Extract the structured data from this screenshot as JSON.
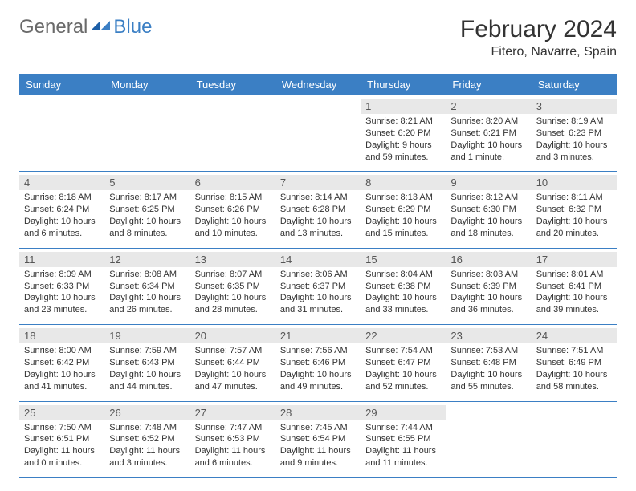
{
  "logo": {
    "text1": "General",
    "text2": "Blue"
  },
  "title": "February 2024",
  "location": "Fitero, Navarre, Spain",
  "colors": {
    "header_bg": "#3b7fc4",
    "daynum_band": "#e8e8e8",
    "week_border": "#3b7fc4",
    "text": "#333333",
    "logo_gray": "#6a6a6a",
    "logo_blue": "#3b7fc4"
  },
  "weekdays": [
    "Sunday",
    "Monday",
    "Tuesday",
    "Wednesday",
    "Thursday",
    "Friday",
    "Saturday"
  ],
  "weeks": [
    [
      null,
      null,
      null,
      null,
      {
        "n": "1",
        "sr": "Sunrise: 8:21 AM",
        "ss": "Sunset: 6:20 PM",
        "dl1": "Daylight: 9 hours",
        "dl2": "and 59 minutes."
      },
      {
        "n": "2",
        "sr": "Sunrise: 8:20 AM",
        "ss": "Sunset: 6:21 PM",
        "dl1": "Daylight: 10 hours",
        "dl2": "and 1 minute."
      },
      {
        "n": "3",
        "sr": "Sunrise: 8:19 AM",
        "ss": "Sunset: 6:23 PM",
        "dl1": "Daylight: 10 hours",
        "dl2": "and 3 minutes."
      }
    ],
    [
      {
        "n": "4",
        "sr": "Sunrise: 8:18 AM",
        "ss": "Sunset: 6:24 PM",
        "dl1": "Daylight: 10 hours",
        "dl2": "and 6 minutes."
      },
      {
        "n": "5",
        "sr": "Sunrise: 8:17 AM",
        "ss": "Sunset: 6:25 PM",
        "dl1": "Daylight: 10 hours",
        "dl2": "and 8 minutes."
      },
      {
        "n": "6",
        "sr": "Sunrise: 8:15 AM",
        "ss": "Sunset: 6:26 PM",
        "dl1": "Daylight: 10 hours",
        "dl2": "and 10 minutes."
      },
      {
        "n": "7",
        "sr": "Sunrise: 8:14 AM",
        "ss": "Sunset: 6:28 PM",
        "dl1": "Daylight: 10 hours",
        "dl2": "and 13 minutes."
      },
      {
        "n": "8",
        "sr": "Sunrise: 8:13 AM",
        "ss": "Sunset: 6:29 PM",
        "dl1": "Daylight: 10 hours",
        "dl2": "and 15 minutes."
      },
      {
        "n": "9",
        "sr": "Sunrise: 8:12 AM",
        "ss": "Sunset: 6:30 PM",
        "dl1": "Daylight: 10 hours",
        "dl2": "and 18 minutes."
      },
      {
        "n": "10",
        "sr": "Sunrise: 8:11 AM",
        "ss": "Sunset: 6:32 PM",
        "dl1": "Daylight: 10 hours",
        "dl2": "and 20 minutes."
      }
    ],
    [
      {
        "n": "11",
        "sr": "Sunrise: 8:09 AM",
        "ss": "Sunset: 6:33 PM",
        "dl1": "Daylight: 10 hours",
        "dl2": "and 23 minutes."
      },
      {
        "n": "12",
        "sr": "Sunrise: 8:08 AM",
        "ss": "Sunset: 6:34 PM",
        "dl1": "Daylight: 10 hours",
        "dl2": "and 26 minutes."
      },
      {
        "n": "13",
        "sr": "Sunrise: 8:07 AM",
        "ss": "Sunset: 6:35 PM",
        "dl1": "Daylight: 10 hours",
        "dl2": "and 28 minutes."
      },
      {
        "n": "14",
        "sr": "Sunrise: 8:06 AM",
        "ss": "Sunset: 6:37 PM",
        "dl1": "Daylight: 10 hours",
        "dl2": "and 31 minutes."
      },
      {
        "n": "15",
        "sr": "Sunrise: 8:04 AM",
        "ss": "Sunset: 6:38 PM",
        "dl1": "Daylight: 10 hours",
        "dl2": "and 33 minutes."
      },
      {
        "n": "16",
        "sr": "Sunrise: 8:03 AM",
        "ss": "Sunset: 6:39 PM",
        "dl1": "Daylight: 10 hours",
        "dl2": "and 36 minutes."
      },
      {
        "n": "17",
        "sr": "Sunrise: 8:01 AM",
        "ss": "Sunset: 6:41 PM",
        "dl1": "Daylight: 10 hours",
        "dl2": "and 39 minutes."
      }
    ],
    [
      {
        "n": "18",
        "sr": "Sunrise: 8:00 AM",
        "ss": "Sunset: 6:42 PM",
        "dl1": "Daylight: 10 hours",
        "dl2": "and 41 minutes."
      },
      {
        "n": "19",
        "sr": "Sunrise: 7:59 AM",
        "ss": "Sunset: 6:43 PM",
        "dl1": "Daylight: 10 hours",
        "dl2": "and 44 minutes."
      },
      {
        "n": "20",
        "sr": "Sunrise: 7:57 AM",
        "ss": "Sunset: 6:44 PM",
        "dl1": "Daylight: 10 hours",
        "dl2": "and 47 minutes."
      },
      {
        "n": "21",
        "sr": "Sunrise: 7:56 AM",
        "ss": "Sunset: 6:46 PM",
        "dl1": "Daylight: 10 hours",
        "dl2": "and 49 minutes."
      },
      {
        "n": "22",
        "sr": "Sunrise: 7:54 AM",
        "ss": "Sunset: 6:47 PM",
        "dl1": "Daylight: 10 hours",
        "dl2": "and 52 minutes."
      },
      {
        "n": "23",
        "sr": "Sunrise: 7:53 AM",
        "ss": "Sunset: 6:48 PM",
        "dl1": "Daylight: 10 hours",
        "dl2": "and 55 minutes."
      },
      {
        "n": "24",
        "sr": "Sunrise: 7:51 AM",
        "ss": "Sunset: 6:49 PM",
        "dl1": "Daylight: 10 hours",
        "dl2": "and 58 minutes."
      }
    ],
    [
      {
        "n": "25",
        "sr": "Sunrise: 7:50 AM",
        "ss": "Sunset: 6:51 PM",
        "dl1": "Daylight: 11 hours",
        "dl2": "and 0 minutes."
      },
      {
        "n": "26",
        "sr": "Sunrise: 7:48 AM",
        "ss": "Sunset: 6:52 PM",
        "dl1": "Daylight: 11 hours",
        "dl2": "and 3 minutes."
      },
      {
        "n": "27",
        "sr": "Sunrise: 7:47 AM",
        "ss": "Sunset: 6:53 PM",
        "dl1": "Daylight: 11 hours",
        "dl2": "and 6 minutes."
      },
      {
        "n": "28",
        "sr": "Sunrise: 7:45 AM",
        "ss": "Sunset: 6:54 PM",
        "dl1": "Daylight: 11 hours",
        "dl2": "and 9 minutes."
      },
      {
        "n": "29",
        "sr": "Sunrise: 7:44 AM",
        "ss": "Sunset: 6:55 PM",
        "dl1": "Daylight: 11 hours",
        "dl2": "and 11 minutes."
      },
      null,
      null
    ]
  ]
}
